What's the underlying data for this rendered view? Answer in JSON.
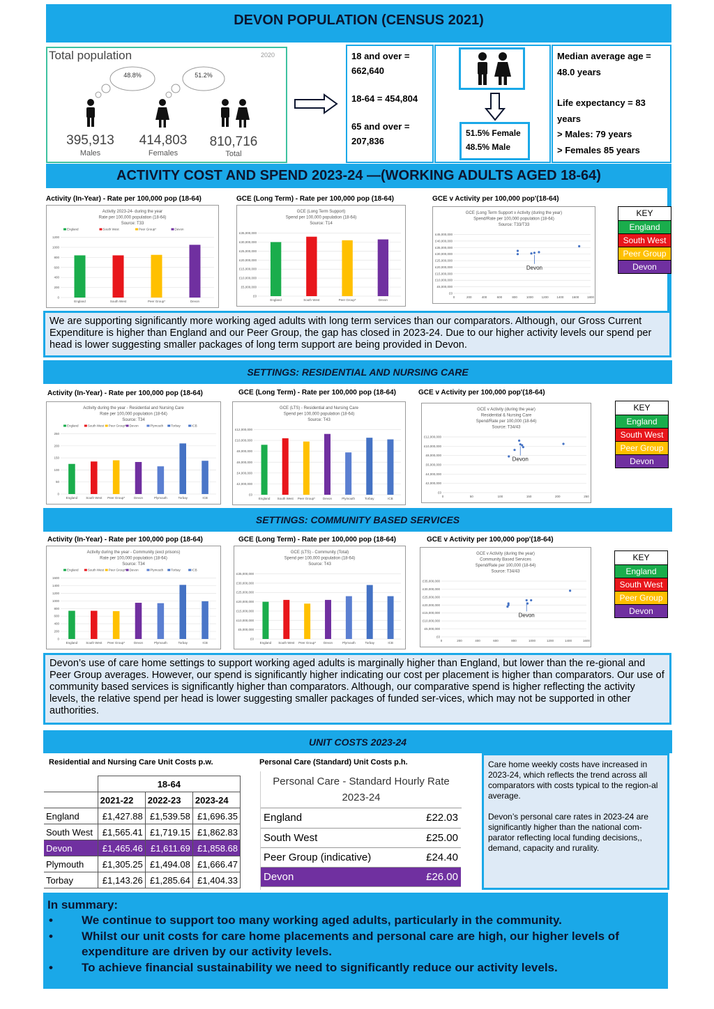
{
  "title": "DEVON POPULATION (CENSUS 2021)",
  "population": {
    "panel_title": "Total population",
    "year": "2020",
    "male_pct": "48.8%",
    "female_pct": "51.2%",
    "males_value": "395,913",
    "males_label": "Males",
    "females_value": "414,803",
    "females_label": "Females",
    "total_value": "810,716",
    "total_label": "Total"
  },
  "age_stats": {
    "over18_label": "18 and over =",
    "over18_value": "662,640",
    "age18_64": "18-64 = 454,804",
    "over65_label": "65 and over =",
    "over65_value": "207,836"
  },
  "gender_split": {
    "female": "51.5% Female",
    "male": "48.5% Male"
  },
  "median": {
    "median_label": "Median average age =",
    "median_value": "48.0 years",
    "life_label": "Life expectancy = 83",
    "life_suffix": "years",
    "males": "> Males: 79 years",
    "females": "> Females 85 years"
  },
  "section_activity": "ACTIVITY COST AND SPEND 2023-24 —(WORKING ADULTS AGED 18-64)",
  "key": {
    "head": "KEY",
    "england": "England",
    "south_west": "South West",
    "peer_group": "Peer Group",
    "devon": "Devon"
  },
  "colors": {
    "england": "#1aad4c",
    "south_west": "#e8161b",
    "peer_group": "#ffc000",
    "devon": "#7030a0",
    "plymouth": "#5b7fd1",
    "torbay": "#4472c4",
    "icb": "#4a76c8",
    "banner": "#1aa8e8"
  },
  "row1": {
    "activity_title": "Activity (In-Year) - Rate per 100,000 pop (18-64)",
    "gce_title": "GCE (Long Term) - Rate per 100,000 pop (18-64)",
    "scatter_title": "GCE v Activity per 100,000 pop'(18-64)"
  },
  "row2": {
    "activity_title": "Activity (In-Year) - Rate per 100,000 pop (18-64)",
    "gce_title": "GCE (Long Term) - Rate per 100,000 pop (18-64)",
    "scatter_title": "GCE v Activity per 100,000 pop'(18-64)"
  },
  "row3": {
    "activity_title": "Activity (In-Year) - Rate per 100,000 pop (18-64)",
    "gce_title": "GCE (Long Term) - Rate per 100,000 pop (18-64)",
    "scatter_title": "GCE v Activity per 100,000 pop'(18-64)"
  },
  "chart_data": [
    {
      "type": "bar",
      "title": "Activity 2023-24- during the year",
      "subtitle": "Rate per 100,000 population (18-64)",
      "source": "Source: T33",
      "categories": [
        "England",
        "South West",
        "Peer Group*",
        "Devon"
      ],
      "legend": [
        "England",
        "South West",
        "Peer Group*",
        "Devon"
      ],
      "values": [
        840,
        840,
        850,
        1050
      ],
      "ylim": [
        0,
        1200
      ],
      "yticks": [
        "0",
        "200",
        "400",
        "600",
        "800",
        "1000",
        "1200"
      ]
    },
    {
      "type": "bar",
      "title": "GCE (Long Term Support)",
      "subtitle": "Spend per 100,000 population (18-64)",
      "source": "Source: T14",
      "categories": [
        "England",
        "South West",
        "Peer Group*",
        "Devon"
      ],
      "values": [
        30000000,
        33000000,
        31000000,
        31500000
      ],
      "ylim": [
        0,
        35000000
      ],
      "yticks": [
        "£0",
        "£5,000,000",
        "£10,000,000",
        "£15,000,000",
        "£20,000,000",
        "£25,000,000",
        "£30,000,000",
        "£35,000,000"
      ]
    },
    {
      "type": "scatter",
      "title": "GCE (Long Term Support v Activity (during the year)",
      "subtitle": "Spend/Rate per 100,000 population (18-64)",
      "source": "Source: T33/T33",
      "annotation": "Devon",
      "points": [
        [
          840,
          30000000
        ],
        [
          840,
          32500000
        ],
        [
          1020,
          30500000
        ],
        [
          1060,
          31000000
        ],
        [
          1120,
          31500000
        ],
        [
          1650,
          36000000
        ]
      ],
      "xlim": [
        0,
        1800
      ],
      "ylim": [
        0,
        45000000
      ],
      "xticks": [
        "0",
        "200",
        "400",
        "600",
        "800",
        "1000",
        "1200",
        "1400",
        "1600",
        "1800"
      ],
      "yticks": [
        "£0",
        "£5,000,000",
        "£10,000,000",
        "£15,000,000",
        "£20,000,000",
        "£25,000,000",
        "£30,000,000",
        "£35,000,000",
        "£40,000,000",
        "£45,000,000"
      ]
    },
    {
      "type": "bar",
      "title": "Activity during the year - Residential and Nursing Care",
      "subtitle": "Rate per 100,000 population (18-64)",
      "source": "Source: T34",
      "categories": [
        "England",
        "South West",
        "Peer Group*",
        "Devon",
        "Plymouth",
        "Torbay",
        "ICB"
      ],
      "legend": [
        "England",
        "South West",
        "Peer Group*",
        "Devon",
        "Plymouth",
        "Torbay",
        "ICB"
      ],
      "values": [
        125,
        135,
        140,
        133,
        115,
        210,
        138
      ],
      "ylim": [
        0,
        250
      ],
      "yticks": [
        "0",
        "50",
        "100",
        "150",
        "200",
        "250"
      ]
    },
    {
      "type": "bar",
      "title": "GCE (LTS) - Residential and Nursing Care",
      "subtitle": "Spend per 100,000 population (18-64)",
      "source": "Source: T43",
      "categories": [
        "England",
        "South West",
        "Peer Group*",
        "Devon",
        "Plymouth",
        "Torbay",
        "ICB"
      ],
      "values": [
        9200000,
        10400000,
        9800000,
        11200000,
        7800000,
        10500000,
        10200000
      ],
      "ylim": [
        0,
        12000000
      ],
      "yticks": [
        "£0",
        "£2,000,000",
        "£4,000,000",
        "£6,000,000",
        "£8,000,000",
        "£10,000,000",
        "£12,000,000"
      ]
    },
    {
      "type": "scatter",
      "title": "GCE v Activity (during the year)",
      "subtitle": "Residential & Nursing Care",
      "subtitle2": "Spend/Rate per 100,000 (18-64)",
      "source": "Source: T34/43",
      "annotation": "Devon",
      "points": [
        [
          115,
          7800000
        ],
        [
          125,
          9200000
        ],
        [
          133,
          11200000
        ],
        [
          135,
          10400000
        ],
        [
          138,
          10200000
        ],
        [
          140,
          9800000
        ],
        [
          210,
          10500000
        ]
      ],
      "xlim": [
        0,
        250
      ],
      "ylim": [
        0,
        12000000
      ],
      "xticks": [
        "0",
        "50",
        "100",
        "150",
        "200",
        "250"
      ],
      "yticks": [
        "£0",
        "£2,000,000",
        "£4,000,000",
        "£6,000,000",
        "£8,000,000",
        "£10,000,000",
        "£12,000,000"
      ]
    },
    {
      "type": "bar",
      "title": "Activity during the year - Community (excl prisons)",
      "subtitle": "Rate per 100,000 population (18-64)",
      "source": "Source: T34",
      "categories": [
        "England",
        "South West",
        "Peer Group*",
        "Devon",
        "Plymouth",
        "Torbay",
        "ICB"
      ],
      "legend": [
        "England",
        "South West",
        "Peer Group*",
        "Devon",
        "Plymouth",
        "Torbay",
        "ICB"
      ],
      "values": [
        740,
        740,
        730,
        950,
        940,
        1420,
        990
      ],
      "ylim": [
        0,
        1600
      ],
      "yticks": [
        "0",
        "200",
        "400",
        "600",
        "800",
        "1000",
        "1200",
        "1400",
        "1600"
      ]
    },
    {
      "type": "bar",
      "title": "GCE (LTS) - Community (Total)",
      "subtitle": "Spend per 100,000 population (18-64)",
      "source": "Source: T43",
      "categories": [
        "England",
        "South West",
        "Peer Group*",
        "Devon",
        "Plymouth",
        "Torbay",
        "ICB"
      ],
      "values": [
        20000000,
        21000000,
        19000000,
        21000000,
        23000000,
        29000000,
        23000000
      ],
      "ylim": [
        0,
        35000000
      ],
      "yticks": [
        "£0",
        "£5,000,000",
        "£10,000,000",
        "£15,000,000",
        "£20,000,000",
        "£25,000,000",
        "£30,000,000",
        "£35,000,000"
      ]
    },
    {
      "type": "scatter",
      "title": "GCE v Activity (during the year)",
      "subtitle": "Community Based Services",
      "subtitle2": "Spend/Rate per 100,000 (18-64)",
      "source": "Source: T34/43",
      "annotation": "Devon",
      "points": [
        [
          730,
          19000000
        ],
        [
          740,
          20000000
        ],
        [
          740,
          21000000
        ],
        [
          940,
          23000000
        ],
        [
          950,
          21000000
        ],
        [
          990,
          23000000
        ],
        [
          1420,
          29000000
        ]
      ],
      "xlim": [
        0,
        1600
      ],
      "ylim": [
        0,
        35000000
      ],
      "xticks": [
        "0",
        "200",
        "400",
        "600",
        "800",
        "1000",
        "1200",
        "1400",
        "1600"
      ],
      "yticks": [
        "£0",
        "£5,000,000",
        "£10,000,000",
        "£15,000,000",
        "£20,000,000",
        "£25,000,000",
        "£30,000,000",
        "£35,000,000"
      ]
    }
  ],
  "text1": "We are supporting significantly more working aged adults with long term services than our comparators.  Although, our Gross Current Expenditure is higher than England and our Peer Group, the gap has closed in 2023-24.  Due to our higher activity levels our spend per head is lower suggesting smaller packages of long term support are being provided in Devon.",
  "section_residential": "SETTINGS: RESIDENTIAL AND NURSING CARE",
  "section_community": "SETTINGS: COMMUNITY BASED SERVICES",
  "text2": "Devon’s use of care home settings to support working aged adults is marginally higher than England, but lower than the re-gional and Peer Group averages.  However, our spend is significantly higher indicating our cost per placement is higher than comparators.   Our use of community based services is significantly higher than comparators.  Although, our comparative spend is higher reflecting the activity levels, the relative spend per head is lower suggesting smaller packages of  funded ser-vices, which may not be supported in other authorities.",
  "section_unit": "UNIT COSTS 2023-24",
  "unit_costs": {
    "res_title": "Residential and Nursing Care Unit Costs p.w.",
    "age_header": "18-64",
    "years": [
      "2021-22",
      "2022-23",
      "2023-24"
    ],
    "rows": [
      {
        "name": "England",
        "v1": "£1,427.88",
        "v2": "£1,539.58",
        "v3": "£1,696.35"
      },
      {
        "name": "South West",
        "v1": "£1,565.41",
        "v2": "£1,719.15",
        "v3": "£1,862.83"
      },
      {
        "name": "Devon",
        "v1": "£1,465.46",
        "v2": "£1,611.69",
        "v3": "£1,858.68"
      },
      {
        "name": "Plymouth",
        "v1": "£1,305.25",
        "v2": "£1,494.08",
        "v3": "£1,666.47"
      },
      {
        "name": "Torbay",
        "v1": "£1,143.26",
        "v2": "£1,285.64",
        "v3": "£1,404.33"
      }
    ],
    "pc_title": "Personal Care (Standard) Unit Costs p.h.",
    "pc_header_1": "Personal Care - Standard Hourly Rate",
    "pc_header_2": "2023-24",
    "pc_rows": [
      {
        "name": "England",
        "value": "£22.03"
      },
      {
        "name": "South West",
        "value": "£25.00"
      },
      {
        "name": "Peer Group (indicative)",
        "value": "£24.40"
      },
      {
        "name": "Devon",
        "value": "£26.00"
      }
    ],
    "note1": "Care home weekly costs have increased in 2023-24, which reflects the trend across all comparators with costs typical to the region-al average.",
    "note2": "Devon’s personal care rates in 2023-24 are significantly higher than the national com-parator reflecting local funding decisions,, demand, capacity and rurality."
  },
  "summary": {
    "heading": "In summary:",
    "items": [
      "We continue to support too many working aged adults, particularly in the community.",
      "Whilst our unit costs for care home placements and personal care are high, our higher levels of expenditure are driven by our activity levels.",
      "To achieve financial sustainability we need to significantly reduce our activity levels."
    ]
  }
}
